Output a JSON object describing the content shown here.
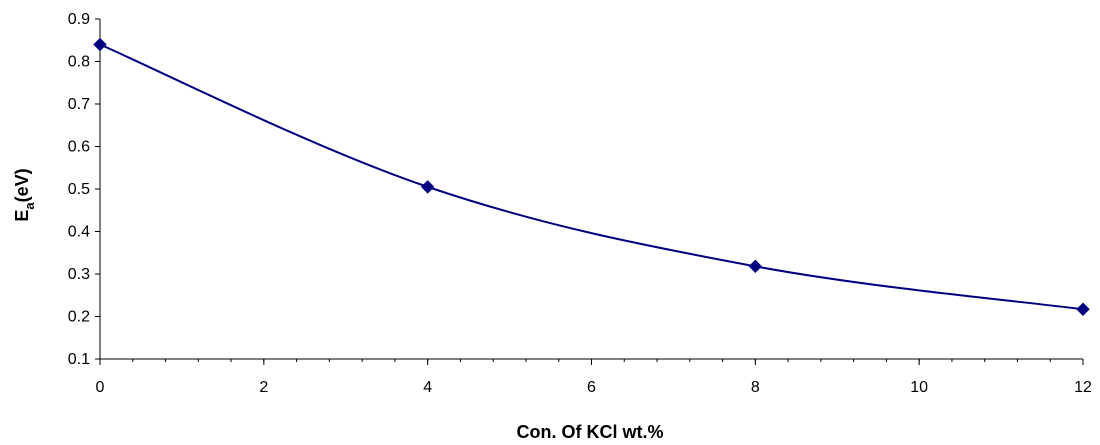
{
  "chart_data": {
    "type": "line",
    "x": [
      0,
      4,
      8,
      12
    ],
    "series": [
      {
        "values": [
          0.84,
          0.505,
          0.318,
          0.217
        ],
        "color": "#000080",
        "marker": "diamond",
        "smooth": true
      }
    ],
    "xlabel": "Con. Of KCl wt.%",
    "ylabel": {
      "main": "E",
      "sub": "a",
      "rest": "(eV)"
    },
    "xlim": [
      0,
      12
    ],
    "ylim": [
      0.1,
      0.9
    ],
    "xticks": [
      "0",
      "2",
      "4",
      "6",
      "8",
      "10",
      "12"
    ],
    "yticks": [
      "0.1",
      "0.2",
      "0.3",
      "0.4",
      "0.5",
      "0.6",
      "0.7",
      "0.8",
      "0.9"
    ],
    "grid": false,
    "legend": "none"
  }
}
